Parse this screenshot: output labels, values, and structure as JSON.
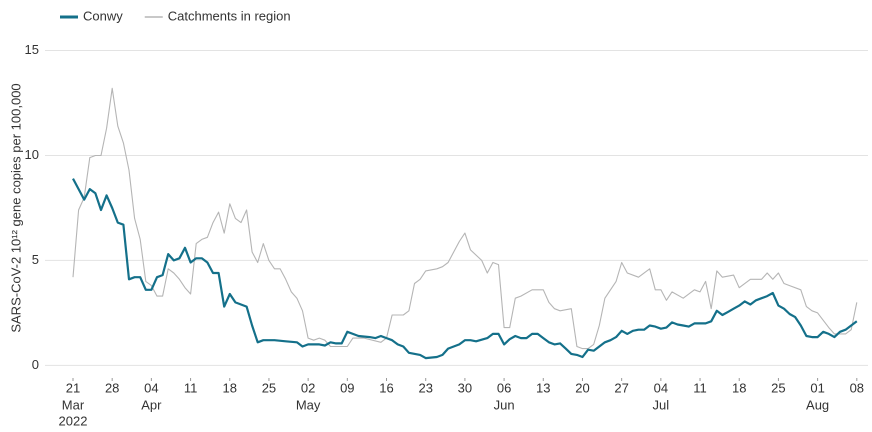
{
  "chart_data": {
    "type": "line",
    "ylabel": "SARS-CoV-2 10¹² gene copies per 100,000",
    "xlim": [
      "2022-03-16",
      "2022-08-10"
    ],
    "ylim": [
      -0.6,
      15.5
    ],
    "yticks": [
      0,
      5,
      10,
      15
    ],
    "grid": true,
    "legend": "top-left",
    "xticks": [
      {
        "value": "2022-03-21",
        "label": "21"
      },
      {
        "value": "2022-03-28",
        "label": "28"
      },
      {
        "value": "2022-04-04",
        "label": "04"
      },
      {
        "value": "2022-04-11",
        "label": "11"
      },
      {
        "value": "2022-04-18",
        "label": "18"
      },
      {
        "value": "2022-04-25",
        "label": "25"
      },
      {
        "value": "2022-05-02",
        "label": "02"
      },
      {
        "value": "2022-05-09",
        "label": "09"
      },
      {
        "value": "2022-05-16",
        "label": "16"
      },
      {
        "value": "2022-05-23",
        "label": "23"
      },
      {
        "value": "2022-05-30",
        "label": "30"
      },
      {
        "value": "2022-06-06",
        "label": "06"
      },
      {
        "value": "2022-06-13",
        "label": "13"
      },
      {
        "value": "2022-06-20",
        "label": "20"
      },
      {
        "value": "2022-06-27",
        "label": "27"
      },
      {
        "value": "2022-07-04",
        "label": "04"
      },
      {
        "value": "2022-07-11",
        "label": "11"
      },
      {
        "value": "2022-07-18",
        "label": "18"
      },
      {
        "value": "2022-07-25",
        "label": "25"
      },
      {
        "value": "2022-08-01",
        "label": "01"
      },
      {
        "value": "2022-08-08",
        "label": "08"
      }
    ],
    "month_labels": [
      {
        "value": "2022-03-21",
        "label": "Mar"
      },
      {
        "value": "2022-04-04",
        "label": "Apr"
      },
      {
        "value": "2022-05-02",
        "label": "May"
      },
      {
        "value": "2022-06-06",
        "label": "Jun"
      },
      {
        "value": "2022-07-04",
        "label": "Jul"
      },
      {
        "value": "2022-08-01",
        "label": "Aug"
      }
    ],
    "year_label": {
      "value": "2022-03-21",
      "label": "2022"
    },
    "series": [
      {
        "name": "Conwy",
        "color": "#14708a",
        "x": [
          "2022-03-21",
          "2022-03-22",
          "2022-03-23",
          "2022-03-24",
          "2022-03-25",
          "2022-03-26",
          "2022-03-27",
          "2022-03-28",
          "2022-03-29",
          "2022-03-30",
          "2022-03-31",
          "2022-04-01",
          "2022-04-02",
          "2022-04-03",
          "2022-04-04",
          "2022-04-05",
          "2022-04-06",
          "2022-04-07",
          "2022-04-08",
          "2022-04-09",
          "2022-04-10",
          "2022-04-11",
          "2022-04-12",
          "2022-04-13",
          "2022-04-14",
          "2022-04-15",
          "2022-04-16",
          "2022-04-17",
          "2022-04-18",
          "2022-04-19",
          "2022-04-20",
          "2022-04-21",
          "2022-04-22",
          "2022-04-23",
          "2022-04-24",
          "2022-04-26",
          "2022-04-28",
          "2022-04-30",
          "2022-05-01",
          "2022-05-02",
          "2022-05-04",
          "2022-05-05",
          "2022-05-06",
          "2022-05-07",
          "2022-05-08",
          "2022-05-09",
          "2022-05-10",
          "2022-05-11",
          "2022-05-13",
          "2022-05-14",
          "2022-05-15",
          "2022-05-16",
          "2022-05-17",
          "2022-05-18",
          "2022-05-19",
          "2022-05-20",
          "2022-05-22",
          "2022-05-23",
          "2022-05-25",
          "2022-05-26",
          "2022-05-27",
          "2022-05-29",
          "2022-05-30",
          "2022-05-31",
          "2022-06-01",
          "2022-06-03",
          "2022-06-04",
          "2022-06-05",
          "2022-06-06",
          "2022-06-07",
          "2022-06-08",
          "2022-06-09",
          "2022-06-10",
          "2022-06-11",
          "2022-06-12",
          "2022-06-13",
          "2022-06-14",
          "2022-06-15",
          "2022-06-16",
          "2022-06-17",
          "2022-06-18",
          "2022-06-19",
          "2022-06-20",
          "2022-06-21",
          "2022-06-22",
          "2022-06-23",
          "2022-06-24",
          "2022-06-25",
          "2022-06-26",
          "2022-06-27",
          "2022-06-28",
          "2022-06-29",
          "2022-06-30",
          "2022-07-01",
          "2022-07-02",
          "2022-07-03",
          "2022-07-04",
          "2022-07-05",
          "2022-07-06",
          "2022-07-07",
          "2022-07-08",
          "2022-07-09",
          "2022-07-10",
          "2022-07-11",
          "2022-07-12",
          "2022-07-13",
          "2022-07-14",
          "2022-07-15",
          "2022-07-16",
          "2022-07-17",
          "2022-07-18",
          "2022-07-19",
          "2022-07-20",
          "2022-07-21",
          "2022-07-22",
          "2022-07-23",
          "2022-07-24",
          "2022-07-25",
          "2022-07-26",
          "2022-07-27",
          "2022-07-28",
          "2022-07-29",
          "2022-07-30",
          "2022-07-31",
          "2022-08-01",
          "2022-08-02",
          "2022-08-03",
          "2022-08-04",
          "2022-08-05",
          "2022-08-06",
          "2022-08-07",
          "2022-08-08"
        ],
        "values": [
          8.9,
          8.4,
          7.9,
          8.4,
          8.2,
          7.4,
          8.1,
          7.5,
          6.8,
          6.7,
          4.1,
          4.2,
          4.2,
          3.6,
          3.6,
          4.2,
          4.3,
          5.3,
          5.0,
          5.1,
          5.6,
          4.9,
          5.1,
          5.1,
          4.9,
          4.4,
          4.4,
          2.8,
          3.4,
          3.0,
          2.9,
          2.8,
          1.9,
          1.1,
          1.2,
          1.2,
          1.15,
          1.1,
          0.9,
          1.0,
          1.0,
          0.95,
          1.1,
          1.05,
          1.05,
          1.6,
          1.5,
          1.4,
          1.35,
          1.3,
          1.4,
          1.3,
          1.2,
          1.0,
          0.9,
          0.6,
          0.5,
          0.35,
          0.4,
          0.5,
          0.8,
          1.0,
          1.2,
          1.2,
          1.15,
          1.3,
          1.5,
          1.5,
          1.0,
          1.25,
          1.4,
          1.3,
          1.3,
          1.5,
          1.5,
          1.3,
          1.1,
          1.0,
          1.05,
          0.8,
          0.55,
          0.5,
          0.4,
          0.75,
          0.7,
          0.9,
          1.1,
          1.2,
          1.35,
          1.65,
          1.5,
          1.65,
          1.7,
          1.7,
          1.9,
          1.85,
          1.75,
          1.8,
          2.05,
          1.95,
          1.9,
          1.85,
          2.0,
          2.0,
          2.0,
          2.1,
          2.6,
          2.4,
          2.55,
          2.7,
          2.85,
          3.05,
          2.9,
          3.1,
          3.2,
          3.3,
          3.45,
          2.85,
          2.7,
          2.45,
          2.3,
          1.9,
          1.4,
          1.35,
          1.35,
          1.6,
          1.5,
          1.35,
          1.6,
          1.7,
          1.9,
          2.1
        ]
      },
      {
        "name": "Catchments in region",
        "color": "#b5b5b5",
        "x": [
          "2022-03-21",
          "2022-03-22",
          "2022-03-23",
          "2022-03-24",
          "2022-03-25",
          "2022-03-26",
          "2022-03-27",
          "2022-03-28",
          "2022-03-29",
          "2022-03-30",
          "2022-03-31",
          "2022-04-01",
          "2022-04-02",
          "2022-04-03",
          "2022-04-04",
          "2022-04-05",
          "2022-04-06",
          "2022-04-07",
          "2022-04-08",
          "2022-04-09",
          "2022-04-10",
          "2022-04-11",
          "2022-04-12",
          "2022-04-13",
          "2022-04-14",
          "2022-04-15",
          "2022-04-16",
          "2022-04-17",
          "2022-04-18",
          "2022-04-19",
          "2022-04-20",
          "2022-04-21",
          "2022-04-22",
          "2022-04-23",
          "2022-04-24",
          "2022-04-25",
          "2022-04-26",
          "2022-04-27",
          "2022-04-28",
          "2022-04-29",
          "2022-04-30",
          "2022-05-01",
          "2022-05-02",
          "2022-05-03",
          "2022-05-04",
          "2022-05-05",
          "2022-05-06",
          "2022-05-07",
          "2022-05-09",
          "2022-05-10",
          "2022-05-12",
          "2022-05-15",
          "2022-05-16",
          "2022-05-17",
          "2022-05-19",
          "2022-05-20",
          "2022-05-21",
          "2022-05-22",
          "2022-05-23",
          "2022-05-25",
          "2022-05-26",
          "2022-05-27",
          "2022-05-29",
          "2022-05-30",
          "2022-05-31",
          "2022-06-02",
          "2022-06-03",
          "2022-06-04",
          "2022-06-05",
          "2022-06-06",
          "2022-06-07",
          "2022-06-08",
          "2022-06-09",
          "2022-06-11",
          "2022-06-13",
          "2022-06-14",
          "2022-06-15",
          "2022-06-16",
          "2022-06-18",
          "2022-06-19",
          "2022-06-20",
          "2022-06-21",
          "2022-06-22",
          "2022-06-23",
          "2022-06-24",
          "2022-06-26",
          "2022-06-27",
          "2022-06-28",
          "2022-06-30",
          "2022-07-02",
          "2022-07-03",
          "2022-07-04",
          "2022-07-05",
          "2022-07-06",
          "2022-07-08",
          "2022-07-10",
          "2022-07-11",
          "2022-07-12",
          "2022-07-13",
          "2022-07-14",
          "2022-07-15",
          "2022-07-17",
          "2022-07-18",
          "2022-07-20",
          "2022-07-22",
          "2022-07-23",
          "2022-07-24",
          "2022-07-25",
          "2022-07-26",
          "2022-07-27",
          "2022-07-29",
          "2022-07-30",
          "2022-07-31",
          "2022-08-01",
          "2022-08-03",
          "2022-08-04",
          "2022-08-06",
          "2022-08-07",
          "2022-08-08"
        ],
        "values": [
          4.2,
          7.4,
          8.0,
          9.9,
          10.0,
          10.0,
          11.3,
          13.2,
          11.4,
          10.6,
          9.3,
          7.0,
          6.0,
          4.0,
          3.8,
          3.3,
          3.3,
          4.6,
          4.4,
          4.1,
          3.7,
          3.4,
          5.8,
          6.0,
          6.1,
          6.8,
          7.3,
          6.3,
          7.7,
          7.0,
          6.8,
          7.4,
          5.4,
          4.9,
          5.8,
          5.0,
          4.6,
          4.6,
          4.1,
          3.5,
          3.2,
          2.6,
          1.3,
          1.2,
          1.3,
          1.2,
          0.9,
          0.9,
          0.9,
          1.3,
          1.3,
          1.1,
          1.3,
          2.4,
          2.4,
          2.6,
          3.9,
          4.1,
          4.5,
          4.6,
          4.7,
          4.9,
          5.9,
          6.3,
          5.5,
          5.0,
          4.4,
          4.9,
          4.8,
          1.8,
          1.8,
          3.2,
          3.3,
          3.6,
          3.6,
          3.0,
          2.7,
          2.6,
          2.7,
          0.9,
          0.8,
          0.8,
          1.0,
          1.9,
          3.2,
          4.0,
          4.9,
          4.4,
          4.2,
          4.6,
          3.6,
          3.6,
          3.1,
          3.5,
          3.2,
          3.6,
          3.5,
          4.0,
          2.7,
          4.5,
          4.2,
          4.3,
          3.7,
          4.1,
          4.1,
          4.4,
          4.1,
          4.4,
          3.9,
          3.8,
          3.6,
          2.8,
          2.6,
          2.5,
          1.8,
          1.5,
          1.5,
          1.7,
          3.0
        ]
      }
    ]
  }
}
